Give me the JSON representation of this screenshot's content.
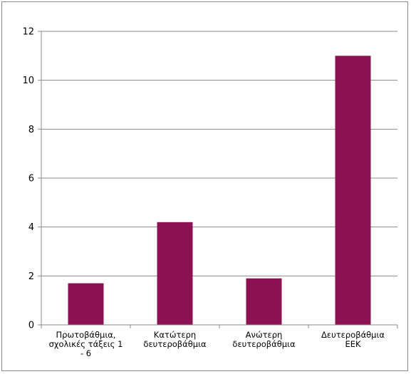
{
  "chart_data": {
    "type": "bar",
    "categories": [
      [
        "Πρωτοβάθμια,",
        "σχολικές τάξεις 1",
        "- 6"
      ],
      [
        "Κατώτερη",
        "δευτεροβάθμια"
      ],
      [
        "Ανώτερη",
        "δευτεροβάθμια"
      ],
      [
        "Δευτεροβάθμια",
        "ΕΕΚ"
      ]
    ],
    "values": [
      1.7,
      4.2,
      1.9,
      11.0
    ],
    "ylim": [
      0,
      12
    ],
    "yticks": [
      0,
      2,
      4,
      6,
      8,
      10,
      12
    ],
    "grid": true,
    "legend": "none",
    "bar_color": "#8c1254",
    "grid_color": "#8a8a8a"
  }
}
